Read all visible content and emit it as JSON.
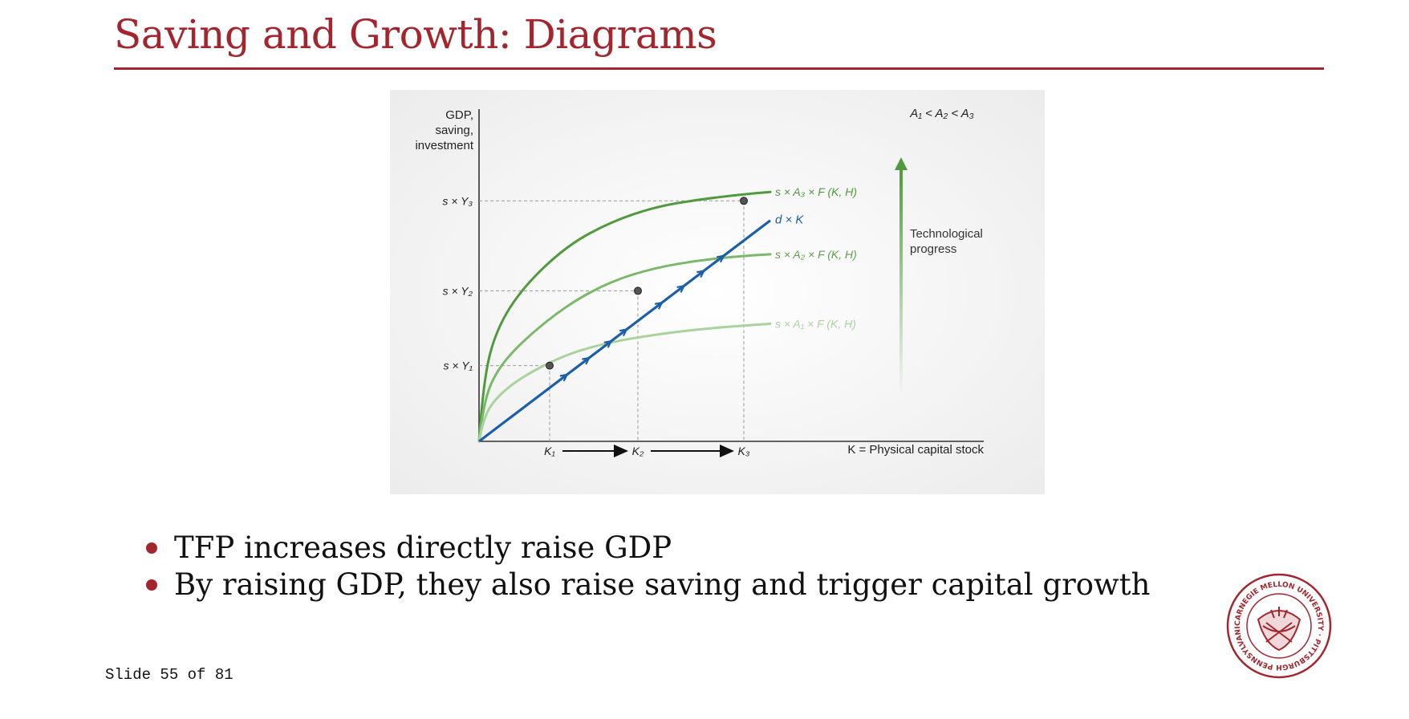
{
  "slide": {
    "title": "Saving and Growth: Diagrams",
    "footer": "Slide 55 of 81",
    "bullets": [
      "TFP increases directly raise GDP",
      "By raising GDP, they also raise saving and trigger capital growth"
    ],
    "accent_color": "#a3262f",
    "seal_text": "CARNEGIE MELLON UNIVERSITY · PITTSBURGH PENNSYLVANIA 1900"
  },
  "chart_data": {
    "type": "line",
    "title": "",
    "ylabel_lines": [
      "GDP,",
      "saving,",
      "investment"
    ],
    "xlabel": "K = Physical capital stock",
    "condition_label": "A₁ < A₂ < A₃",
    "ytick_labels": [
      "s × Y₃",
      "s × Y₂",
      "s × Y₁"
    ],
    "xtick_labels": [
      "K₁",
      "K₂",
      "K₃"
    ],
    "line_label": "d × K",
    "curve_labels": [
      "s × A₃ × F (K, H)",
      "s × A₂ × F (K, H)",
      "s × A₁ × F (K, H)"
    ],
    "arrow_label_lines": [
      "Technological",
      "progress"
    ],
    "grid": false,
    "colors": {
      "depreciation_line": "#1b5fa8",
      "curve_A3": "#4f9a3d",
      "curve_A2": "#7bb96a",
      "curve_A1": "#a9d39c",
      "dashed": "#9a9a9a",
      "axis": "#333333"
    },
    "x_range": [
      0,
      10
    ],
    "y_range": [
      0,
      10
    ],
    "depreciation_line_points": [
      [
        0,
        0
      ],
      [
        6.6,
        7.44
      ]
    ],
    "curves": [
      {
        "name": "s × A₃ × F (K, H)",
        "points": [
          [
            0,
            0
          ],
          [
            0.1,
            2.1
          ],
          [
            0.4,
            3.8
          ],
          [
            1,
            5.2
          ],
          [
            2,
            6.6
          ],
          [
            3,
            7.4
          ],
          [
            4,
            7.9
          ],
          [
            5,
            8.15
          ],
          [
            6,
            8.32
          ],
          [
            6.6,
            8.4
          ]
        ]
      },
      {
        "name": "s × A₂ × F (K, H)",
        "points": [
          [
            0,
            0
          ],
          [
            0.1,
            1.3
          ],
          [
            0.4,
            2.4
          ],
          [
            1,
            3.4
          ],
          [
            2,
            4.6
          ],
          [
            3,
            5.4
          ],
          [
            4,
            5.85
          ],
          [
            5,
            6.1
          ],
          [
            6,
            6.25
          ],
          [
            6.6,
            6.3
          ]
        ]
      },
      {
        "name": "s × A₁ × F (K, H)",
        "points": [
          [
            0,
            0
          ],
          [
            0.1,
            0.8
          ],
          [
            0.4,
            1.5
          ],
          [
            1,
            2.2
          ],
          [
            2,
            2.95
          ],
          [
            3,
            3.35
          ],
          [
            4,
            3.6
          ],
          [
            5,
            3.78
          ],
          [
            6,
            3.9
          ],
          [
            6.6,
            3.96
          ]
        ]
      }
    ],
    "equilibria": [
      {
        "label": "K₁",
        "x": 1.6,
        "y": 2.55
      },
      {
        "label": "K₂",
        "x": 3.6,
        "y": 5.07
      },
      {
        "label": "K₃",
        "x": 6.0,
        "y": 8.1
      }
    ]
  }
}
